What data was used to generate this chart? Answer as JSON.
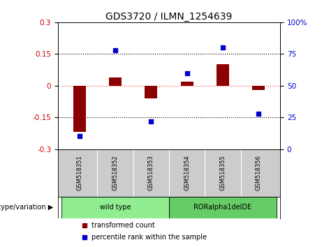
{
  "title": "GDS3720 / ILMN_1254639",
  "samples": [
    "GSM518351",
    "GSM518352",
    "GSM518353",
    "GSM518354",
    "GSM518355",
    "GSM518356"
  ],
  "red_bars": [
    -0.22,
    0.04,
    -0.06,
    0.02,
    0.1,
    -0.02
  ],
  "blue_dots": [
    10,
    78,
    22,
    60,
    80,
    28
  ],
  "ylim_left": [
    -0.3,
    0.3
  ],
  "ylim_right": [
    0,
    100
  ],
  "yticks_left": [
    -0.3,
    -0.15,
    0,
    0.15,
    0.3
  ],
  "yticks_right": [
    0,
    25,
    50,
    75,
    100
  ],
  "groups": [
    {
      "label": "wild type",
      "indices": [
        0,
        1,
        2
      ],
      "color": "#90EE90"
    },
    {
      "label": "RORalpha1delDE",
      "indices": [
        3,
        4,
        5
      ],
      "color": "#66CC66"
    }
  ],
  "bar_color": "#8B0000",
  "dot_color": "#0000CC",
  "bar_width": 0.35,
  "legend_labels": [
    "transformed count",
    "percentile rank within the sample"
  ],
  "genotype_label": "genotype/variation",
  "background_color": "#ffffff",
  "plot_bg": "#ffffff",
  "tick_label_color_left": "#CC0000",
  "tick_label_color_right": "#0000CC",
  "title_fontsize": 10,
  "axis_fontsize": 7.5,
  "legend_fontsize": 7,
  "sample_label_fontsize": 6,
  "genotype_fontsize": 7
}
